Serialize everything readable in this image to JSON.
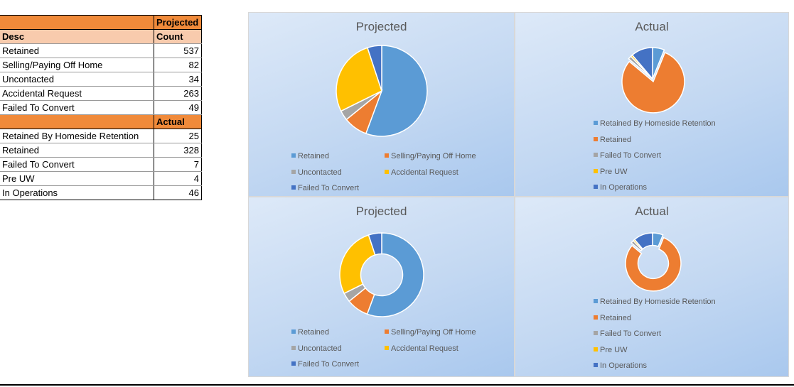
{
  "table": {
    "header1": {
      "c1": "",
      "c2": "Projected"
    },
    "header2": {
      "c1": "Desc",
      "c2": "Count"
    },
    "projected_rows": [
      {
        "label": "Retained",
        "value": "537"
      },
      {
        "label": "Selling/Paying Off Home",
        "value": "82"
      },
      {
        "label": "Uncontacted",
        "value": "34"
      },
      {
        "label": "Accidental Request",
        "value": "263"
      },
      {
        "label": "Failed To Convert",
        "value": "49"
      }
    ],
    "header3": {
      "c1": "",
      "c2": "Actual"
    },
    "actual_rows": [
      {
        "label": "Retained By Homeside Retention",
        "value": "25"
      },
      {
        "label": "Retained",
        "value": "328"
      },
      {
        "label": "Failed To Convert",
        "value": "7"
      },
      {
        "label": "Pre UW",
        "value": "4"
      },
      {
        "label": "In Operations",
        "value": "46"
      }
    ]
  },
  "colors": {
    "blue": "#5b9bd5",
    "orange": "#ed7d31",
    "gray": "#a5a5a5",
    "yellow": "#ffc000",
    "darkblue": "#4472c4"
  },
  "chart_data": [
    {
      "type": "pie",
      "title": "Projected",
      "categories": [
        "Retained",
        "Selling/Paying Off Home",
        "Uncontacted",
        "Accidental Request",
        "Failed To Convert"
      ],
      "values": [
        537,
        82,
        34,
        263,
        49
      ],
      "colors": [
        "#5b9bd5",
        "#ed7d31",
        "#a5a5a5",
        "#ffc000",
        "#4472c4"
      ],
      "legend": "bottom"
    },
    {
      "type": "pie",
      "title": "Actual",
      "categories": [
        "Retained By Homeside Retention",
        "Retained",
        "Failed To Convert",
        "Pre UW",
        "In Operations"
      ],
      "values": [
        25,
        328,
        7,
        4,
        46
      ],
      "colors": [
        "#5b9bd5",
        "#ed7d31",
        "#a5a5a5",
        "#ffc000",
        "#4472c4"
      ],
      "legend": "bottom"
    },
    {
      "type": "doughnut",
      "title": "Projected",
      "categories": [
        "Retained",
        "Selling/Paying Off Home",
        "Uncontacted",
        "Accidental Request",
        "Failed To Convert"
      ],
      "values": [
        537,
        82,
        34,
        263,
        49
      ],
      "colors": [
        "#5b9bd5",
        "#ed7d31",
        "#a5a5a5",
        "#ffc000",
        "#4472c4"
      ],
      "legend": "bottom"
    },
    {
      "type": "doughnut",
      "title": "Actual",
      "categories": [
        "Retained By Homeside Retention",
        "Retained",
        "Failed To Convert",
        "Pre UW",
        "In Operations"
      ],
      "values": [
        25,
        328,
        7,
        4,
        46
      ],
      "colors": [
        "#5b9bd5",
        "#ed7d31",
        "#a5a5a5",
        "#ffc000",
        "#4472c4"
      ],
      "legend": "bottom"
    }
  ]
}
